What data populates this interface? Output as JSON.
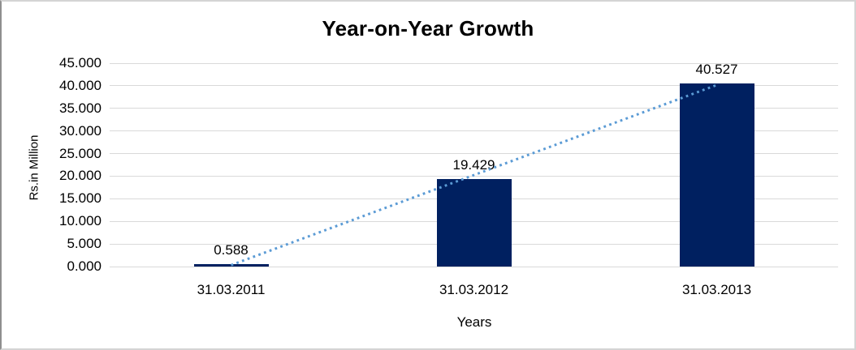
{
  "chart_data": {
    "type": "bar",
    "title": "Year-on-Year Growth",
    "xlabel": "Years",
    "ylabel": "Rs.in Million",
    "categories": [
      "31.03.2011",
      "31.03.2012",
      "31.03.2013"
    ],
    "values": [
      0.588,
      19.429,
      40.527
    ],
    "data_labels": [
      "0.588",
      "19.429",
      "40.527"
    ],
    "ylim": [
      0,
      45
    ],
    "ytick_step": 5,
    "ytick_labels": [
      "0.000",
      "5.000",
      "10.000",
      "15.000",
      "20.000",
      "25.000",
      "30.000",
      "35.000",
      "40.000",
      "45.000"
    ],
    "grid": true,
    "legend": "none",
    "trendline": {
      "style": "dotted",
      "kind": "linear"
    },
    "colors": {
      "bar": "#002060",
      "trendline": "#5b9bd5",
      "gridline": "#d9d9d9",
      "text": "#000000",
      "background": "#ffffff"
    }
  }
}
